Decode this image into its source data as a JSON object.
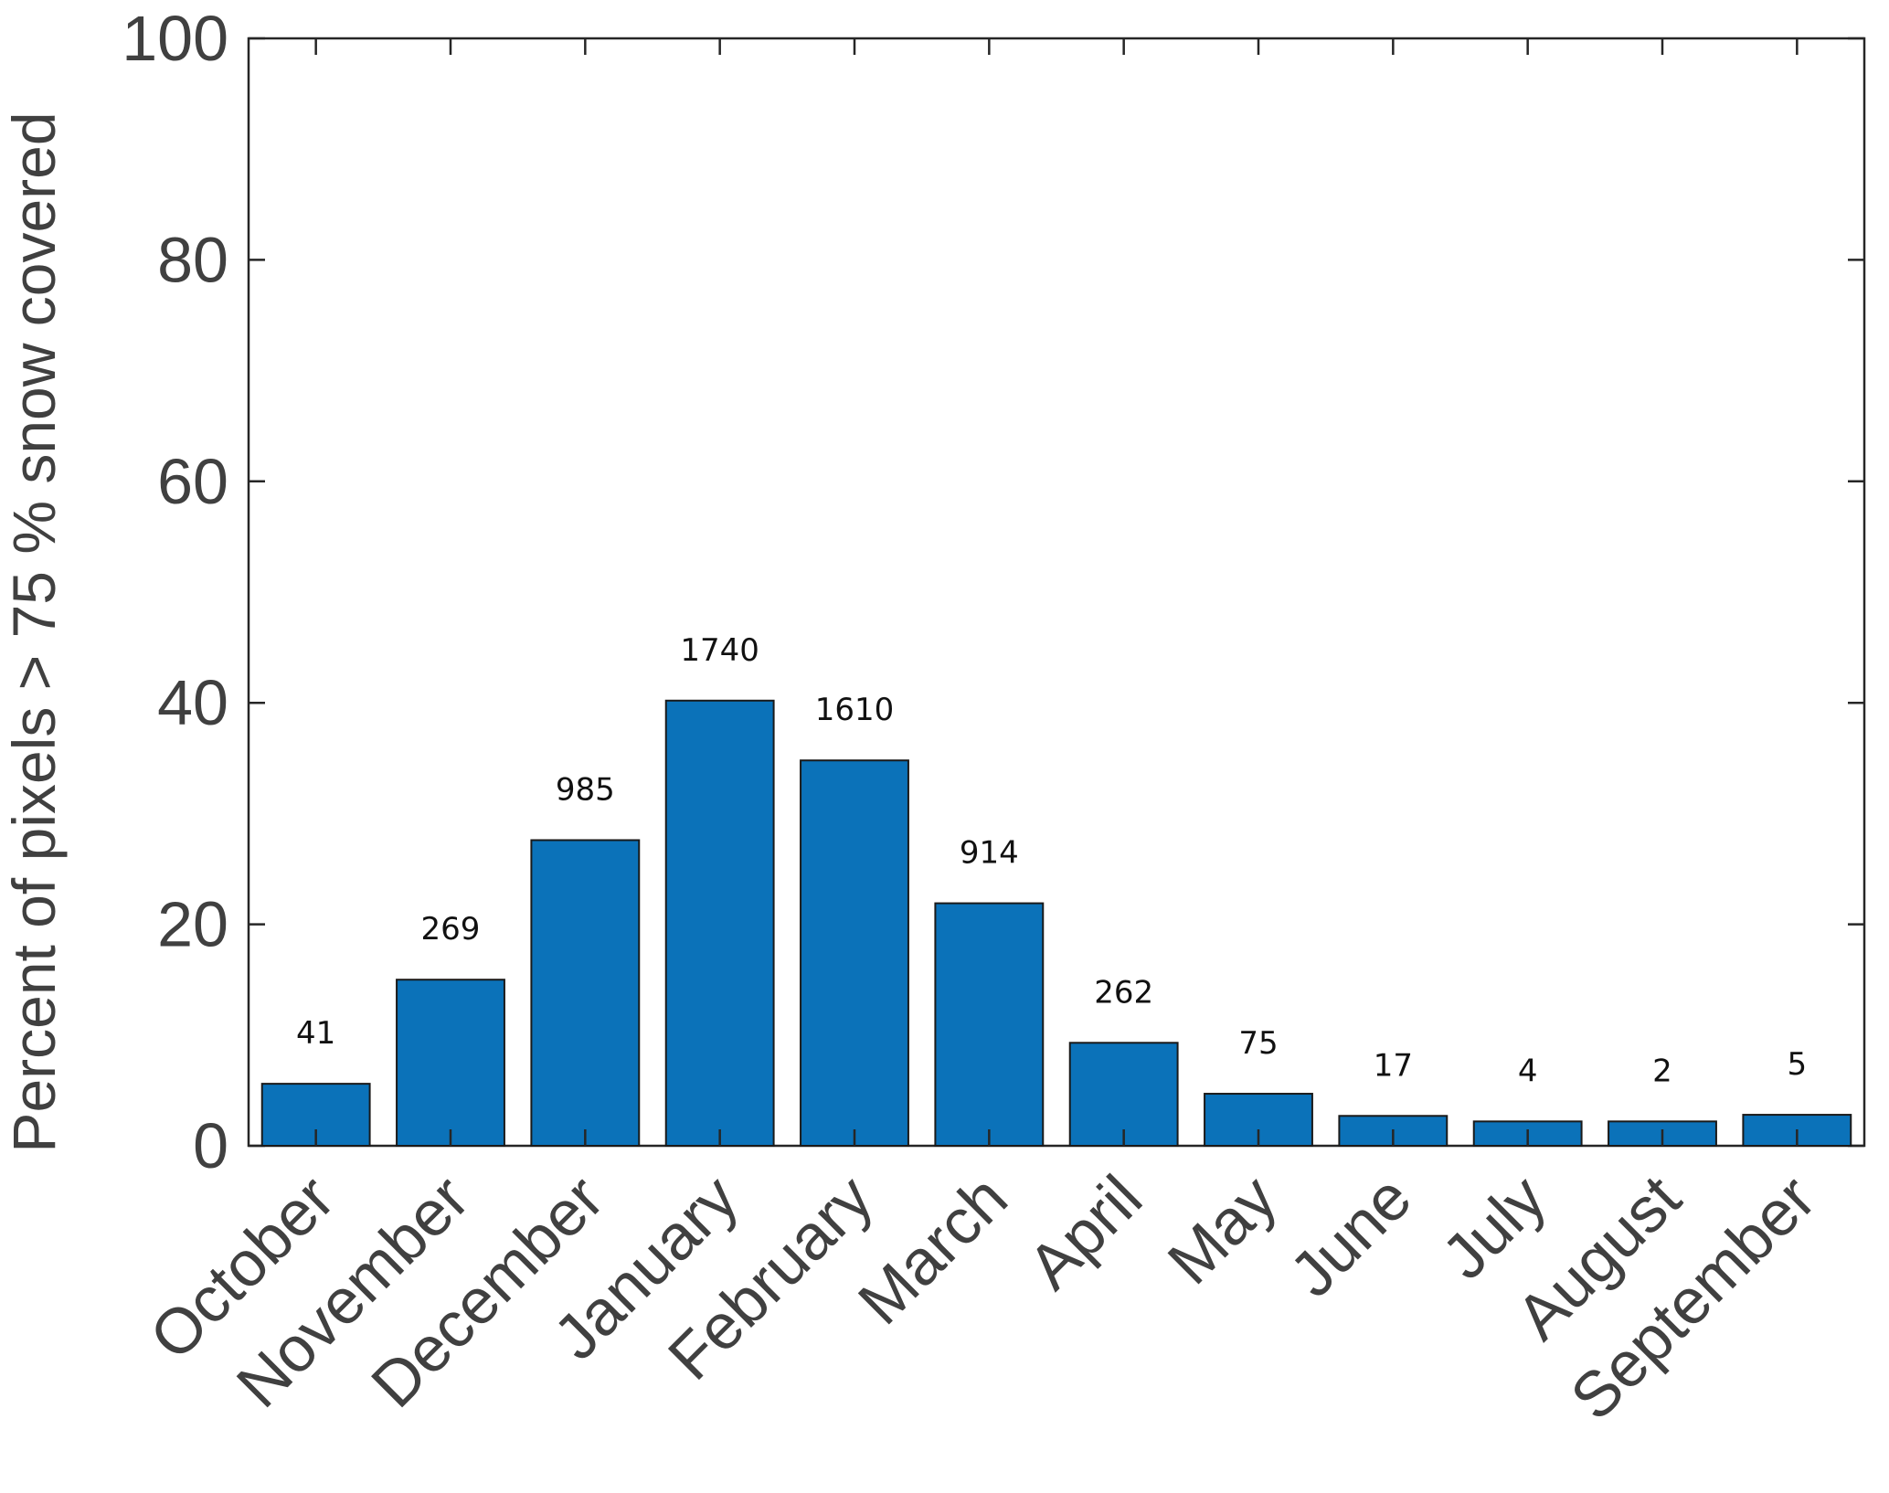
{
  "chart_data": {
    "type": "bar",
    "title": "",
    "xlabel": "",
    "ylabel": "Percent of pixels > 75 % snow covered",
    "categories": [
      "October",
      "November",
      "December",
      "January",
      "February",
      "March",
      "April",
      "May",
      "June",
      "July",
      "August",
      "September"
    ],
    "values": [
      5.6,
      15.0,
      27.6,
      40.2,
      34.8,
      21.9,
      9.3,
      4.7,
      2.7,
      2.2,
      2.2,
      2.8
    ],
    "bar_labels": [
      "41",
      "269",
      "985",
      "1740",
      "1610",
      "914",
      "262",
      "75",
      "17",
      "4",
      "2",
      "5"
    ],
    "ylim": [
      0,
      100
    ],
    "yticks": [
      0,
      20,
      40,
      60,
      80,
      100
    ],
    "grid": false,
    "legend": "none",
    "bar_color": "#0b72b9",
    "bar_edge_color": "#1a1a1a"
  }
}
